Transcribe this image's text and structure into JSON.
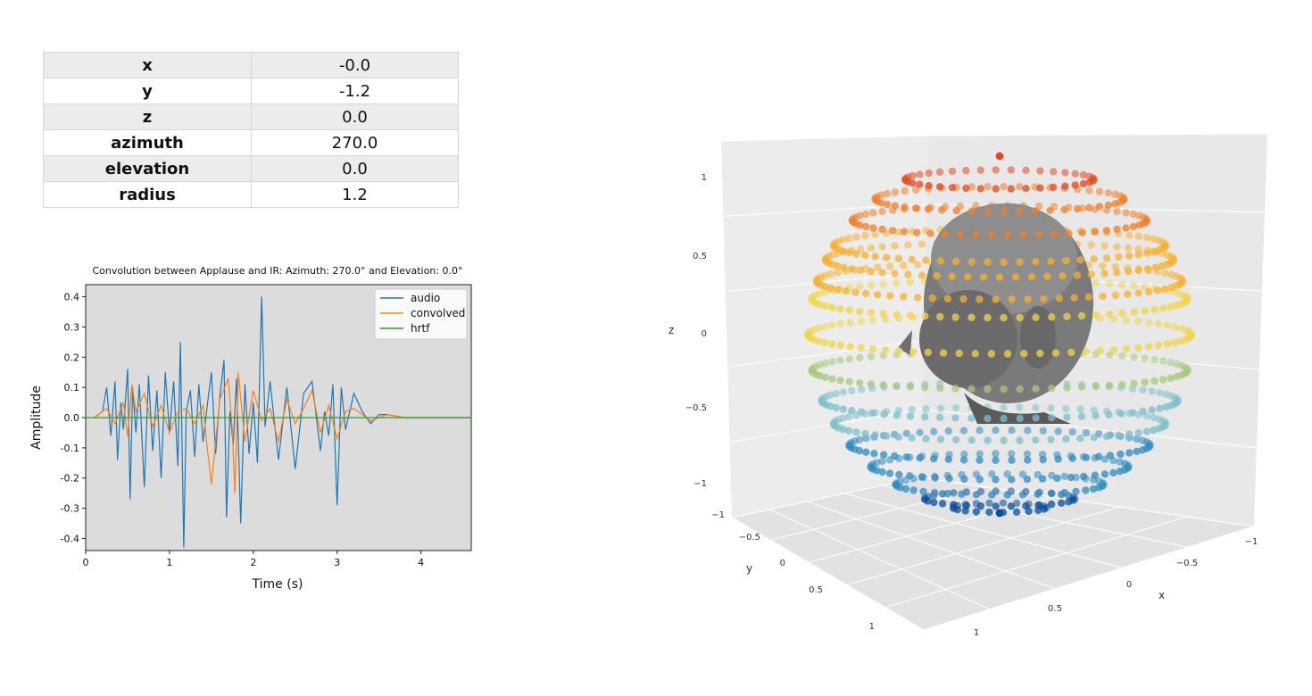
{
  "info_table": {
    "rows": [
      {
        "key": "x",
        "value": "-0.0"
      },
      {
        "key": "y",
        "value": "-1.2"
      },
      {
        "key": "z",
        "value": "0.0"
      },
      {
        "key": "azimuth",
        "value": "270.0"
      },
      {
        "key": "elevation",
        "value": "0.0"
      },
      {
        "key": "radius",
        "value": "1.2"
      }
    ]
  },
  "chart_data": [
    {
      "type": "line",
      "title": "Convolution between Applause and IR: Azimuth: 270.0° and Elevation: 0.0°",
      "xlabel": "Time (s)",
      "ylabel": "Amplitude",
      "xlim": [
        0,
        4.6
      ],
      "ylim": [
        -0.44,
        0.44
      ],
      "xticks": [
        "0",
        "1",
        "2",
        "3",
        "4"
      ],
      "yticks": [
        "0.4",
        "0.3",
        "0.2",
        "0.1",
        "0.0",
        "-0.1",
        "-0.2",
        "-0.3",
        "-0.4"
      ],
      "grid": false,
      "legend": "top-right",
      "background": "#dcdcdc",
      "series": [
        {
          "name": "audio",
          "color": "#1f77b4",
          "x": [
            0.1,
            0.2,
            0.25,
            0.3,
            0.35,
            0.38,
            0.42,
            0.45,
            0.5,
            0.53,
            0.56,
            0.6,
            0.64,
            0.7,
            0.75,
            0.8,
            0.85,
            0.9,
            0.95,
            1.0,
            1.05,
            1.1,
            1.13,
            1.17,
            1.2,
            1.25,
            1.3,
            1.35,
            1.4,
            1.45,
            1.5,
            1.55,
            1.6,
            1.65,
            1.68,
            1.72,
            1.76,
            1.8,
            1.85,
            1.9,
            1.95,
            2.0,
            2.05,
            2.1,
            2.14,
            2.2,
            2.3,
            2.4,
            2.5,
            2.6,
            2.7,
            2.8,
            2.85,
            2.9,
            2.95,
            3.0,
            3.05,
            3.1,
            3.2,
            3.3,
            3.4,
            3.5,
            3.6,
            3.8,
            4.0,
            4.3,
            4.6
          ],
          "y": [
            0.0,
            0.02,
            0.1,
            -0.06,
            0.12,
            -0.14,
            0.05,
            -0.04,
            0.16,
            -0.27,
            0.1,
            -0.05,
            0.11,
            -0.23,
            0.14,
            -0.11,
            0.09,
            -0.2,
            0.15,
            -0.05,
            0.12,
            -0.16,
            0.25,
            -0.43,
            0.02,
            0.09,
            -0.13,
            0.11,
            -0.08,
            0.04,
            0.15,
            -0.12,
            0.07,
            0.19,
            -0.33,
            0.02,
            -0.09,
            0.13,
            -0.35,
            0.11,
            -0.12,
            0.05,
            -0.15,
            0.4,
            -0.03,
            0.12,
            -0.14,
            0.1,
            -0.17,
            0.08,
            0.12,
            -0.11,
            0.02,
            -0.06,
            0.11,
            -0.29,
            0.1,
            -0.04,
            0.08,
            0.02,
            -0.02,
            0.01,
            0.01,
            0.0,
            0.0,
            0.0,
            0.0
          ]
        },
        {
          "name": "convolved",
          "color": "#ff7f0e",
          "x": [
            0.1,
            0.25,
            0.35,
            0.45,
            0.5,
            0.55,
            0.6,
            0.7,
            0.8,
            0.9,
            1.0,
            1.1,
            1.2,
            1.3,
            1.4,
            1.45,
            1.5,
            1.6,
            1.7,
            1.75,
            1.78,
            1.82,
            1.9,
            2.0,
            2.05,
            2.1,
            2.2,
            2.3,
            2.4,
            2.5,
            2.6,
            2.7,
            2.8,
            2.9,
            3.0,
            3.1,
            3.2,
            3.4,
            3.6,
            3.8,
            4.6
          ],
          "y": [
            0.0,
            0.03,
            -0.02,
            0.05,
            -0.06,
            0.11,
            0.02,
            0.08,
            -0.03,
            0.04,
            -0.05,
            0.02,
            0.03,
            -0.02,
            0.04,
            -0.1,
            -0.22,
            0.06,
            0.13,
            -0.04,
            -0.25,
            0.15,
            -0.08,
            0.09,
            0.04,
            -0.01,
            0.03,
            -0.08,
            0.06,
            -0.02,
            0.03,
            0.09,
            -0.05,
            0.04,
            -0.07,
            0.02,
            0.03,
            -0.01,
            0.01,
            0.0,
            0.0
          ]
        },
        {
          "name": "hrtf",
          "color": "#2ca02c",
          "x": [
            0.0,
            4.6
          ],
          "y": [
            0.0,
            0.0
          ]
        }
      ]
    },
    {
      "type": "scatter",
      "title": "",
      "xlabel": "x",
      "ylabel": "y",
      "zlabel": "z",
      "xticks": [
        "−1",
        "−0.5",
        "0",
        "0.5",
        "1"
      ],
      "yticks": [
        "−1",
        "−0.5",
        "0",
        "0.5",
        "1"
      ],
      "zticks": [
        "1",
        "0.5",
        "0",
        "−0.5",
        "−1"
      ],
      "colorscale": [
        "#0a4f9a",
        "#2e8bc0",
        "#7cc0c8",
        "#a7c97a",
        "#f2d64b",
        "#f7b030",
        "#ef7f2a",
        "#e04a22"
      ],
      "grid": true,
      "points": "HRTF measurement positions on a sphere, coloured by elevation (z)",
      "rings_z": [
        1.0,
        0.87,
        0.76,
        0.64,
        0.5,
        0.42,
        0.3,
        0.2,
        0.0,
        -0.2,
        -0.37,
        -0.5,
        -0.62,
        -0.74,
        -0.84,
        -0.92,
        -0.97,
        -1.0
      ],
      "head_icon": "human-head-model"
    }
  ]
}
